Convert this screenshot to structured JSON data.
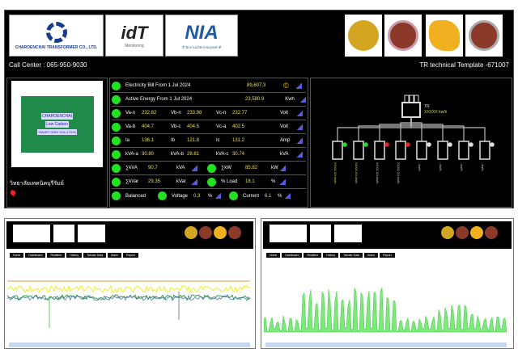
{
  "header": {
    "company": "CHAROENCHAI TRANSFORMER CO., LTD.",
    "idt": "idT",
    "idt_sub": "Monitoring",
    "nia": "NIA",
    "nia_sub": "สำนักงานนวัตกรรมแห่งชาติ",
    "call_center": "Call Center : 065-950-9030",
    "template": "TR technical Template -671007"
  },
  "location": {
    "name": "วิทยาลัยเทคนิคบุรีรัมย์",
    "icon": "map-pin-icon"
  },
  "transformer_panel": {
    "brand": "CHAROENCHAI",
    "tag1": "Low Carbon",
    "tag2": "SMART GRID SOLUTION"
  },
  "readings": {
    "bill": {
      "label": "Electricity Bill From 1 Jul 2024",
      "value": "89,607.3",
      "unit_icon": "coin-icon"
    },
    "energy": {
      "label": "Active Energy From 1 Jul 2024",
      "value": "23,580.9",
      "unit": "Kwh"
    },
    "vln": {
      "l1": "Va-n",
      "v1": "232.82",
      "l2": "Vb-n",
      "v2": "233.98",
      "l3": "Vc-n",
      "v3": "232.77",
      "unit": "Volt"
    },
    "vll": {
      "l1": "Va-b",
      "v1": "404.7",
      "l2": "Vb-c",
      "v2": "404.5",
      "l3": "Vc-a",
      "v3": "402.5",
      "unit": "Volt"
    },
    "amp": {
      "l1": "Ia",
      "v1": "136.1",
      "l2": "Ib",
      "v2": "121.8",
      "l3": "Ic",
      "v3": "131.2",
      "unit": "Amp"
    },
    "kva": {
      "l1": "kVA-a",
      "v1": "30.80",
      "l2": "kVA-b",
      "v2": "28.81",
      "l3": "kVA-c",
      "v3": "30.74",
      "unit": "kVA"
    },
    "sum1": {
      "l1": "∑kVA",
      "v1": "90.7",
      "u1": "kVA",
      "l2": "∑kW",
      "v2": "85.82",
      "u2": "kW"
    },
    "sum2": {
      "l1": "∑kVar",
      "v1": "29.35",
      "u1": "kVar",
      "l2": "% Load",
      "v2": "18.1",
      "u2": "%"
    },
    "bal": {
      "l1": "Balanced",
      "l2": "Voltage",
      "v2": "0.3",
      "u2": "%",
      "l3": "Current",
      "v3": "6.1",
      "u3": "%"
    }
  },
  "diagram": {
    "tr_label": "TR",
    "tr_value": "XXXXX kw/h",
    "feeders": [
      {
        "status": "#22dd22",
        "label": "XXXX.XX kw/h"
      },
      {
        "status": "#22dd22",
        "label": "XXXX.XX kw/h"
      },
      {
        "status": "#ee2222",
        "label": "XXXX.XX kw/h"
      },
      {
        "status": "#ee2222",
        "label": "XXXX.XX kw/h"
      },
      {
        "status": "#dddddd",
        "label": "- kw/h"
      },
      {
        "status": "#dddddd",
        "label": "- kw/h"
      },
      {
        "status": "#dddddd",
        "label": "- kw/h"
      },
      {
        "status": "#dddddd",
        "label": "- kw/h"
      }
    ]
  },
  "screens": {
    "nav": [
      "Home",
      "Dashboard",
      "Realtime",
      "History",
      "Tabular Data",
      "Alarm",
      "Report"
    ],
    "chart_type_left": "line",
    "chart_type_right": "area"
  },
  "colors": {
    "green": "#22e022",
    "value": "#e8e04a",
    "accent": "#5a5ae0"
  }
}
